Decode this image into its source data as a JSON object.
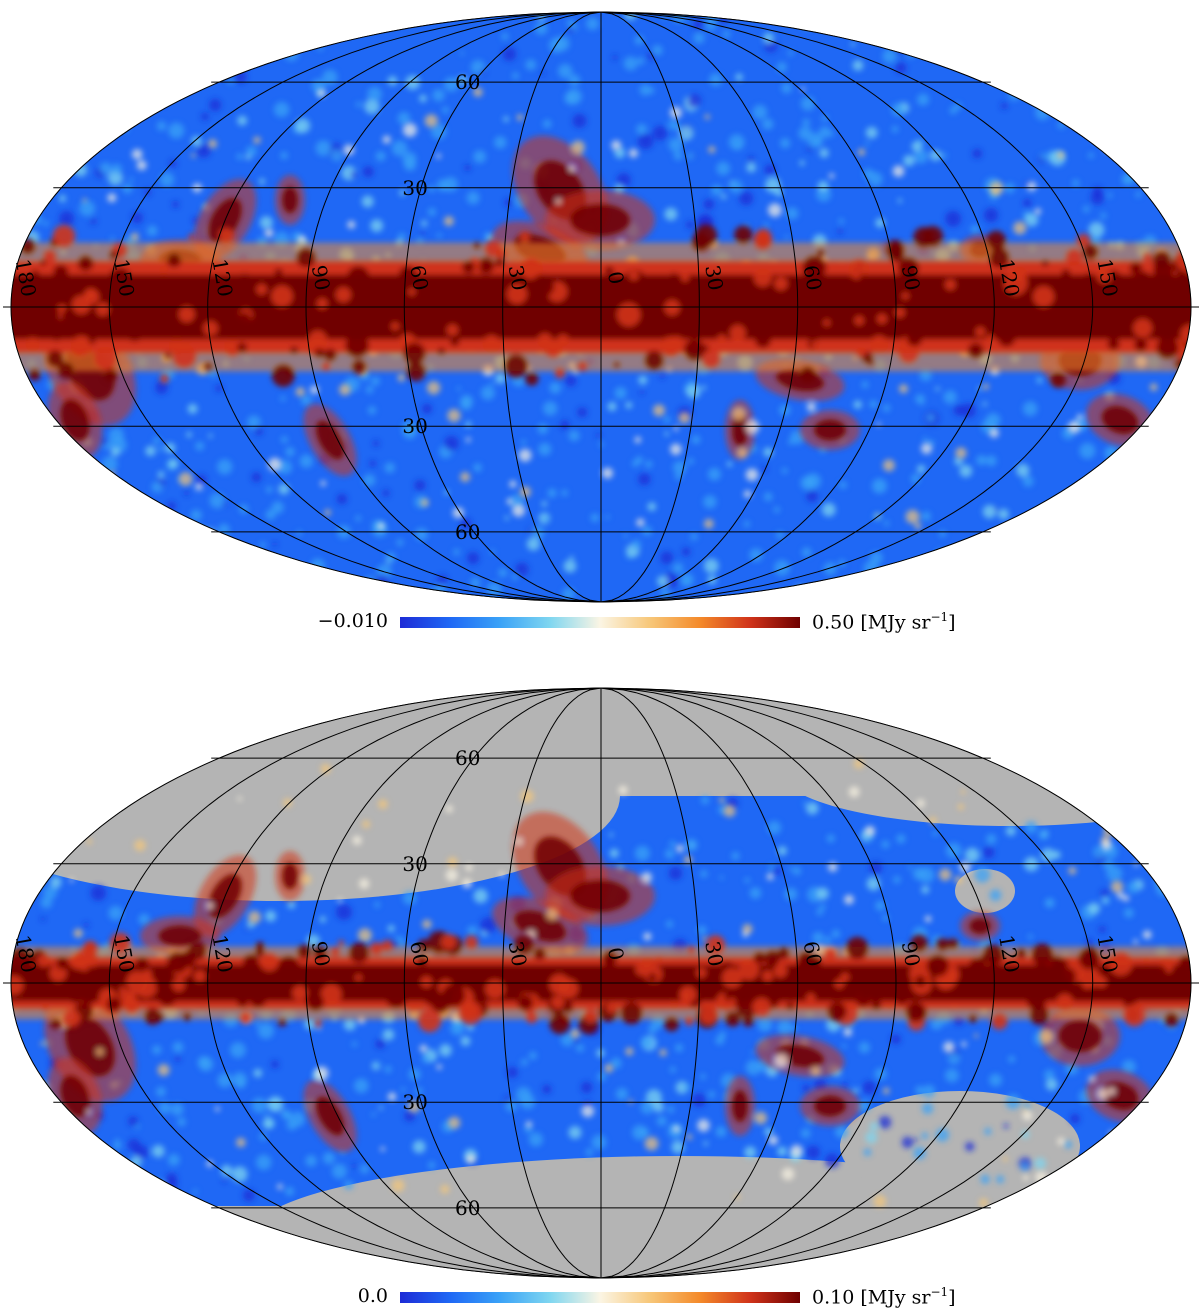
{
  "colormap": [
    "#1d2bd6",
    "#1f68f5",
    "#3aa2f7",
    "#7fd6f0",
    "#fbf5e4",
    "#f7c779",
    "#f48a2a",
    "#d0331a",
    "#6f0000"
  ],
  "mask_color": "#b4b4b4",
  "maps": [
    {
      "id": "top",
      "masked": false,
      "lat_labels": [
        "60",
        "30",
        "0",
        "30",
        "60"
      ],
      "lat_values": [
        60,
        30,
        0,
        -30,
        -60
      ],
      "lon_labels": [
        "180",
        "150",
        "120",
        "90",
        "60",
        "30",
        "0",
        "30",
        "60",
        "90",
        "120",
        "150"
      ],
      "lon_values": [
        180,
        150,
        120,
        90,
        60,
        30,
        0,
        -30,
        -60,
        -90,
        -120,
        -150
      ],
      "colorbar": {
        "min_label": "−0.010",
        "max_label": "0.50 [MJy sr",
        "max_unit_sup": "−1",
        "max_close": "]"
      }
    },
    {
      "id": "bottom",
      "masked": true,
      "lat_labels": [
        "60",
        "30",
        "0",
        "30",
        "60"
      ],
      "lat_values": [
        60,
        30,
        0,
        -30,
        -60
      ],
      "lon_labels": [
        "180",
        "150",
        "120",
        "90",
        "60",
        "30",
        "0",
        "30",
        "60",
        "90",
        "120",
        "150"
      ],
      "lon_values": [
        180,
        150,
        120,
        90,
        60,
        30,
        0,
        -30,
        -60,
        -90,
        -120,
        -150
      ],
      "colorbar": {
        "min_label": "0.0",
        "max_label": "0.10 [MJy sr",
        "max_unit_sup": "−1",
        "max_close": "]"
      }
    }
  ]
}
